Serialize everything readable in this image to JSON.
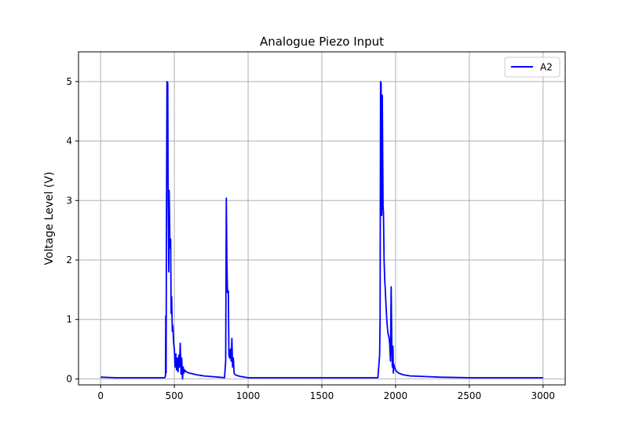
{
  "chart_data": {
    "type": "line",
    "title": "Analogue Piezo Input",
    "xlabel": "",
    "ylabel": "Voltage Level (V)",
    "xlim": [
      -150,
      3150
    ],
    "ylim": [
      -0.1,
      5.5
    ],
    "xticks": [
      0,
      500,
      1000,
      1500,
      2000,
      2500,
      3000
    ],
    "yticks": [
      0,
      1,
      2,
      3,
      4,
      5
    ],
    "grid": true,
    "legend_position": "top-right",
    "series": [
      {
        "name": "A2",
        "color": "#0000ff",
        "x": [
          0,
          100,
          200,
          300,
          400,
          435,
          440,
          442,
          444,
          446,
          450,
          455,
          458,
          462,
          465,
          470,
          475,
          478,
          482,
          486,
          490,
          495,
          500,
          505,
          510,
          515,
          520,
          525,
          530,
          535,
          540,
          545,
          550,
          555,
          560,
          565,
          570,
          580,
          600,
          650,
          700,
          750,
          800,
          840,
          848,
          852,
          856,
          860,
          866,
          870,
          875,
          880,
          885,
          890,
          895,
          900,
          905,
          910,
          920,
          950,
          1000,
          1100,
          1200,
          1300,
          1400,
          1500,
          1600,
          1700,
          1800,
          1880,
          1892,
          1895,
          1898,
          1902,
          1906,
          1910,
          1915,
          1918,
          1922,
          1926,
          1930,
          1935,
          1940,
          1945,
          1950,
          1955,
          1960,
          1965,
          1970,
          1975,
          1978,
          1982,
          1985,
          1988,
          1992,
          1996,
          2000,
          2010,
          2020,
          2050,
          2100,
          2200,
          2300,
          2500,
          2700,
          3000
        ],
        "y": [
          0.03,
          0.02,
          0.02,
          0.02,
          0.02,
          0.02,
          0.05,
          1.06,
          0.1,
          2.5,
          5.0,
          4.98,
          3.0,
          1.8,
          3.17,
          2.2,
          2.35,
          1.1,
          1.38,
          0.8,
          0.9,
          0.6,
          0.5,
          0.2,
          0.42,
          0.15,
          0.35,
          0.12,
          0.4,
          0.2,
          0.6,
          0.08,
          0.35,
          0.0,
          0.2,
          0.1,
          0.15,
          0.12,
          0.1,
          0.07,
          0.05,
          0.04,
          0.03,
          0.02,
          0.3,
          3.04,
          2.0,
          1.45,
          1.48,
          0.4,
          0.35,
          0.5,
          0.3,
          0.68,
          0.2,
          0.35,
          0.1,
          0.08,
          0.06,
          0.04,
          0.02,
          0.02,
          0.02,
          0.02,
          0.02,
          0.02,
          0.02,
          0.02,
          0.02,
          0.02,
          0.4,
          1.0,
          5.0,
          4.97,
          2.75,
          4.77,
          2.9,
          2.8,
          2.0,
          1.7,
          1.5,
          1.25,
          1.0,
          0.85,
          0.75,
          0.7,
          0.6,
          0.3,
          1.55,
          0.5,
          0.2,
          0.55,
          0.1,
          0.25,
          0.2,
          0.18,
          0.15,
          0.12,
          0.1,
          0.07,
          0.05,
          0.04,
          0.03,
          0.02,
          0.02,
          0.02
        ]
      }
    ]
  }
}
